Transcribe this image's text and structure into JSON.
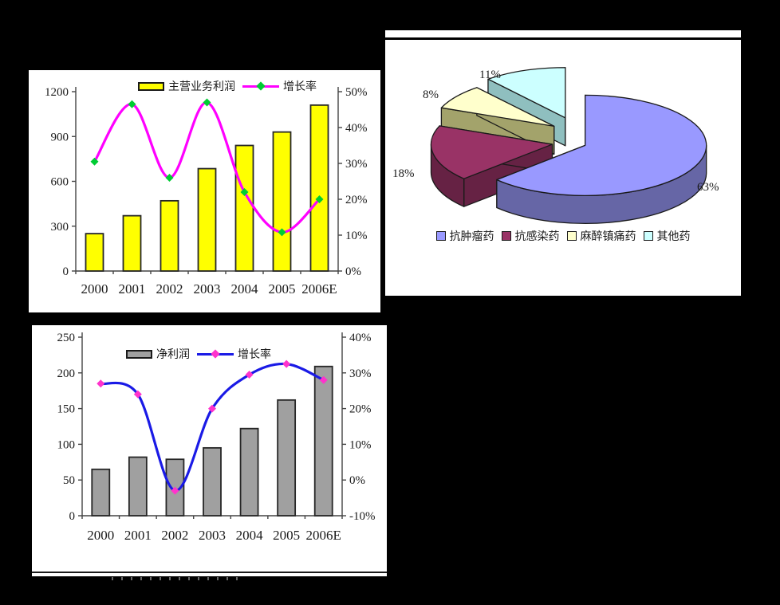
{
  "page": {
    "background": "#000000",
    "panel_background": "#ffffff"
  },
  "chart_data": [
    {
      "id": "main-business-profit",
      "type": "bar",
      "subtype": "bar-line-combo",
      "categories": [
        "2000",
        "2001",
        "2002",
        "2003",
        "2004",
        "2005",
        "2006E"
      ],
      "series": [
        {
          "name": "主营业务利润",
          "type": "bar",
          "axis": "left",
          "values": [
            250,
            370,
            470,
            685,
            840,
            930,
            1110
          ],
          "color": "#FFFF00",
          "border_color": "#262626"
        },
        {
          "name": "增长率",
          "type": "line",
          "axis": "right",
          "values": [
            30.5,
            46.5,
            26,
            47,
            22,
            10.8,
            20
          ],
          "color": "#FF00FF",
          "marker_color": "#00CC33"
        }
      ],
      "left_axis": {
        "min": 0,
        "max": 1200,
        "tick_labels": [
          "0",
          "300",
          "600",
          "900",
          "1200"
        ]
      },
      "right_axis": {
        "min": 0,
        "max": 50,
        "tick_labels": [
          "0%",
          "10%",
          "20%",
          "30%",
          "40%",
          "50%"
        ]
      },
      "grid": false,
      "legend_position": "top-center"
    },
    {
      "id": "net-profit",
      "type": "bar",
      "subtype": "bar-line-combo",
      "categories": [
        "2000",
        "2001",
        "2002",
        "2003",
        "2004",
        "2005",
        "2006E"
      ],
      "series": [
        {
          "name": "净利润",
          "type": "bar",
          "axis": "left",
          "values": [
            65,
            82,
            79,
            95,
            122,
            162,
            209
          ],
          "color": "#A0A0A0",
          "border_color": "#262626"
        },
        {
          "name": "增长率",
          "type": "line",
          "axis": "right",
          "values": [
            27,
            24,
            -3,
            20,
            29.5,
            32.5,
            28
          ],
          "color": "#1A1AE6",
          "marker_color": "#FF33CC"
        }
      ],
      "left_axis": {
        "min": 0,
        "max": 250,
        "tick_labels": [
          "0",
          "50",
          "100",
          "150",
          "200",
          "250"
        ]
      },
      "right_axis": {
        "min": -10,
        "max": 40,
        "tick_labels": [
          "-10%",
          "0%",
          "10%",
          "20%",
          "30%",
          "40%"
        ]
      },
      "grid": false,
      "legend_position": "top-center"
    },
    {
      "id": "drug-category-share",
      "type": "pie",
      "subtype": "pie-3d-exploded",
      "slices": [
        {
          "label": "抗肿瘤药",
          "value": 63,
          "pct_label": "63%",
          "color": "#9999FF",
          "side_color": "#6666A6"
        },
        {
          "label": "抗感染药",
          "value": 18,
          "pct_label": "18%",
          "color": "#993366",
          "side_color": "#662244"
        },
        {
          "label": "麻醉镇痛药",
          "value": 8,
          "pct_label": "8%",
          "color": "#FFFFCC",
          "side_color": "#A3A36B"
        },
        {
          "label": "其他药",
          "value": 11,
          "pct_label": "11%",
          "color": "#CCFFFF",
          "side_color": "#8FBFBF"
        }
      ],
      "legend_position": "bottom-center"
    }
  ]
}
